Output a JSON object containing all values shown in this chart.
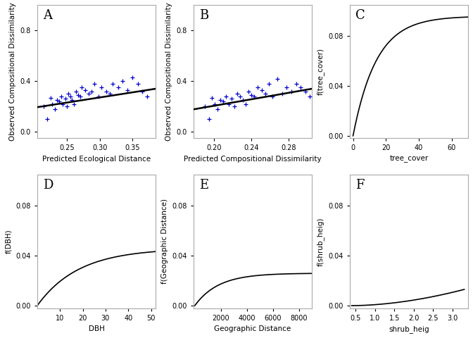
{
  "panel_labels": [
    "A",
    "B",
    "C",
    "D",
    "E",
    "F"
  ],
  "panel_A": {
    "xlabel": "Predicted Ecological Distance",
    "ylabel": "Observed Compositional Dissimilarity",
    "xlim": [
      0.205,
      0.385
    ],
    "ylim": [
      -0.05,
      1.0
    ],
    "xticks": [
      0.25,
      0.3,
      0.35
    ],
    "yticks": [
      0.0,
      0.4,
      0.8
    ],
    "scatter_x": [
      0.215,
      0.22,
      0.225,
      0.228,
      0.232,
      0.235,
      0.238,
      0.241,
      0.244,
      0.248,
      0.25,
      0.252,
      0.255,
      0.258,
      0.261,
      0.264,
      0.267,
      0.27,
      0.273,
      0.278,
      0.283,
      0.288,
      0.292,
      0.298,
      0.303,
      0.31,
      0.315,
      0.32,
      0.328,
      0.335,
      0.342,
      0.35,
      0.358,
      0.365,
      0.372
    ],
    "scatter_y": [
      0.2,
      0.1,
      0.27,
      0.22,
      0.18,
      0.25,
      0.24,
      0.28,
      0.22,
      0.26,
      0.2,
      0.3,
      0.28,
      0.25,
      0.22,
      0.32,
      0.29,
      0.28,
      0.35,
      0.33,
      0.3,
      0.32,
      0.38,
      0.28,
      0.35,
      0.32,
      0.3,
      0.38,
      0.35,
      0.4,
      0.33,
      0.43,
      0.38,
      0.32,
      0.28
    ],
    "line_x": [
      0.205,
      0.385
    ],
    "line_y": [
      0.195,
      0.34
    ]
  },
  "panel_B": {
    "xlabel": "Predicted Compositional Dissimilarity",
    "ylabel": "Observed Compositional Dissimilarity",
    "xlim": [
      0.178,
      0.305
    ],
    "ylim": [
      -0.05,
      1.0
    ],
    "xticks": [
      0.2,
      0.24,
      0.28
    ],
    "yticks": [
      0.0,
      0.4,
      0.8
    ],
    "scatter_x": [
      0.19,
      0.195,
      0.198,
      0.201,
      0.204,
      0.207,
      0.21,
      0.213,
      0.216,
      0.219,
      0.222,
      0.225,
      0.228,
      0.231,
      0.234,
      0.237,
      0.24,
      0.243,
      0.247,
      0.251,
      0.255,
      0.259,
      0.263,
      0.268,
      0.273,
      0.278,
      0.283,
      0.288,
      0.293,
      0.298,
      0.303
    ],
    "scatter_y": [
      0.2,
      0.1,
      0.27,
      0.22,
      0.18,
      0.25,
      0.24,
      0.28,
      0.22,
      0.26,
      0.2,
      0.3,
      0.28,
      0.25,
      0.22,
      0.32,
      0.29,
      0.28,
      0.35,
      0.33,
      0.3,
      0.38,
      0.28,
      0.42,
      0.3,
      0.35,
      0.32,
      0.38,
      0.35,
      0.32,
      0.28
    ],
    "line_x": [
      0.178,
      0.305
    ],
    "line_y": [
      0.178,
      0.34
    ]
  },
  "panel_C": {
    "xlabel": "tree_cover",
    "ylabel": "f(tree_cover)",
    "xlim": [
      -2,
      70
    ],
    "ylim": [
      -0.002,
      0.105
    ],
    "xticks": [
      0,
      20,
      40,
      60
    ],
    "yticks": [
      0.0,
      0.04,
      0.08
    ],
    "curve_rate": 0.07,
    "curve_max": 0.096
  },
  "panel_D": {
    "xlabel": "DBH",
    "ylabel": "f(DBH)",
    "xlim": [
      0,
      52
    ],
    "ylim": [
      -0.002,
      0.105
    ],
    "xticks": [
      10,
      20,
      30,
      40,
      50
    ],
    "yticks": [
      0.0,
      0.04,
      0.08
    ],
    "curve_rate": 0.055,
    "curve_max": 0.046
  },
  "panel_E": {
    "xlabel": "Geographic Distance",
    "ylabel": "f(Geographic Distance)",
    "xlim": [
      -100,
      9000
    ],
    "ylim": [
      -0.002,
      0.105
    ],
    "xticks": [
      2000,
      4000,
      6000,
      8000
    ],
    "yticks": [
      0.0,
      0.04,
      0.08
    ],
    "curve_rate": 0.00055,
    "curve_max": 0.026
  },
  "panel_F": {
    "xlabel": "shrub_heig",
    "ylabel": "f(shrub_heig)",
    "xlim": [
      0.35,
      3.4
    ],
    "ylim": [
      -0.002,
      0.105
    ],
    "xticks": [
      0.5,
      1.0,
      1.5,
      2.0,
      2.5,
      3.0
    ],
    "yticks": [
      0.0,
      0.04,
      0.08
    ],
    "curve_rate": 1.8,
    "curve_max": 0.013
  },
  "scatter_color": "#0000CC",
  "line_color": "#000000",
  "curve_color": "#000000",
  "bg_color": "#FFFFFF",
  "spine_color": "#AAAAAA"
}
